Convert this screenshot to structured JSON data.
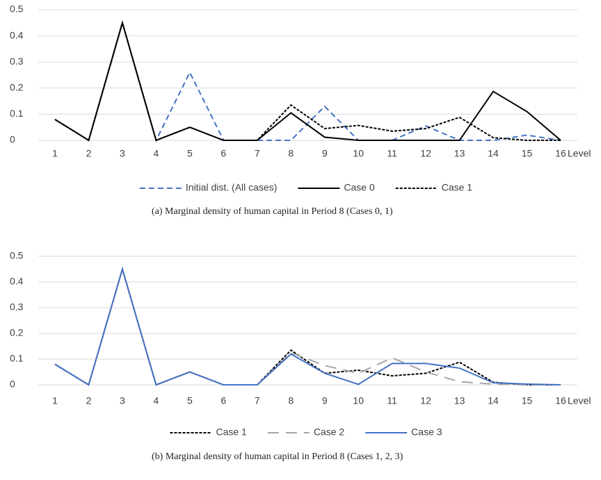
{
  "chart_data": [
    {
      "type": "line",
      "caption": "(a) Marginal density of human capital in Period 8 (Cases 0, 1)",
      "xlabel": "Level",
      "categories": [
        "1",
        "2",
        "3",
        "4",
        "5",
        "6",
        "7",
        "8",
        "9",
        "10",
        "11",
        "12",
        "13",
        "14",
        "15",
        "16"
      ],
      "ylim": [
        0,
        0.5
      ],
      "yticks": [
        0,
        0.1,
        0.2,
        0.3,
        0.4,
        0.5
      ],
      "grid": true,
      "series": [
        {
          "name": "Initial dist. (All cases)",
          "color": "#4472c4",
          "dash": "dashed",
          "values": [
            0.08,
            0,
            0.45,
            0,
            0.26,
            0,
            0,
            0,
            0.13,
            0,
            0,
            0.055,
            0,
            0,
            0.02,
            0
          ]
        },
        {
          "name": "Case 0",
          "color": "#000000",
          "dash": "solid",
          "values": [
            0.08,
            0,
            0.45,
            0,
            0.05,
            0,
            0,
            0.105,
            0.012,
            0,
            0,
            0,
            0,
            0.187,
            0.11,
            0
          ]
        },
        {
          "name": "Case 1",
          "color": "#000000",
          "dash": "dotted",
          "values": [
            0.08,
            0,
            0.45,
            0,
            0.05,
            0,
            0,
            0.135,
            0.045,
            0.057,
            0.035,
            0.045,
            0.088,
            0.01,
            0,
            0
          ]
        }
      ]
    },
    {
      "type": "line",
      "caption": "(b) Marginal density of human capital in Period 8 (Cases 1, 2, 3)",
      "xlabel": "Level",
      "categories": [
        "1",
        "2",
        "3",
        "4",
        "5",
        "6",
        "7",
        "8",
        "9",
        "10",
        "11",
        "12",
        "13",
        "14",
        "15",
        "16"
      ],
      "ylim": [
        0,
        0.5
      ],
      "yticks": [
        0,
        0.1,
        0.2,
        0.3,
        0.4,
        0.5
      ],
      "grid": true,
      "series": [
        {
          "name": "Case 1",
          "color": "#000000",
          "dash": "dotted",
          "values": [
            0.08,
            0,
            0.45,
            0,
            0.05,
            0,
            0,
            0.135,
            0.045,
            0.057,
            0.035,
            0.045,
            0.088,
            0.01,
            0,
            0
          ]
        },
        {
          "name": "Case 2",
          "color": "#a6a6a6",
          "dash": "long-dash",
          "values": [
            0.08,
            0,
            0.45,
            0,
            0.05,
            0,
            0,
            0.125,
            0.075,
            0.045,
            0.105,
            0.05,
            0.012,
            0.003,
            0,
            0
          ]
        },
        {
          "name": "Case 3",
          "color": "#4472c4",
          "dash": "solid",
          "values": [
            0.08,
            0,
            0.45,
            0,
            0.05,
            0,
            0,
            0.12,
            0.045,
            0.002,
            0.083,
            0.083,
            0.065,
            0.008,
            0.003,
            0
          ]
        }
      ]
    }
  ]
}
